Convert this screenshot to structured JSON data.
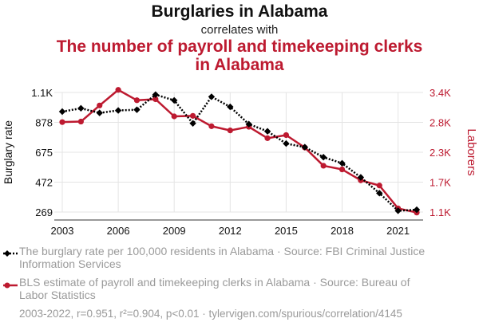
{
  "header": {
    "title": "Burglaries in Alabama",
    "subtitle": "correlates with",
    "title2": "The number of payroll and timekeeping clerks in Alabama"
  },
  "chart_data": {
    "type": "line",
    "x": [
      2003,
      2004,
      2005,
      2006,
      2007,
      2008,
      2009,
      2010,
      2011,
      2012,
      2013,
      2014,
      2015,
      2016,
      2017,
      2018,
      2019,
      2020,
      2021,
      2022
    ],
    "series": [
      {
        "name": "The burglary rate per 100,000 residents in Alabama · Source: FBI Criminal Justice Information Services",
        "axis": "left",
        "color": "#000000",
        "style": "dotted",
        "marker": "diamond",
        "values": [
          967,
          990,
          958,
          975,
          980,
          1085,
          1045,
          885,
          1070,
          1000,
          880,
          830,
          745,
          720,
          650,
          608,
          510,
          400,
          278,
          285
        ]
      },
      {
        "name": "BLS estimate of payroll and timekeeping clerks in Alabama · Source: Bureau of Labor Statistics",
        "axis": "right",
        "color": "#bd1a30",
        "style": "solid",
        "marker": "circle",
        "values": [
          2830,
          2840,
          3150,
          3450,
          3250,
          3270,
          2940,
          2950,
          2750,
          2670,
          2740,
          2520,
          2580,
          2340,
          1990,
          1920,
          1710,
          1610,
          1170,
          1090
        ]
      }
    ],
    "ylabel_left": "Burglary rate",
    "ylabel_right": "Laborers",
    "ylim_left": [
      269,
      1100
    ],
    "ylim_right": [
      1100,
      3400
    ],
    "xticks": [
      "2003",
      "2006",
      "2009",
      "2012",
      "2015",
      "2018",
      "2021"
    ],
    "yticks_left": [
      "269",
      "472",
      "675",
      "878",
      "1.1K"
    ],
    "yticks_right": [
      "1.1K",
      "1.7K",
      "2.3K",
      "2.8K",
      "3.4K"
    ],
    "grid": true
  },
  "footer": {
    "stats": "2003-2022, r=0.951, r²=0.904, p<0.01 · tylervigen.com/spurious/correlation/4145"
  },
  "colors": {
    "series1": "#000000",
    "series2": "#bd1a30",
    "grid": "#e4e4e4",
    "muted_text": "#9a9a9a"
  }
}
